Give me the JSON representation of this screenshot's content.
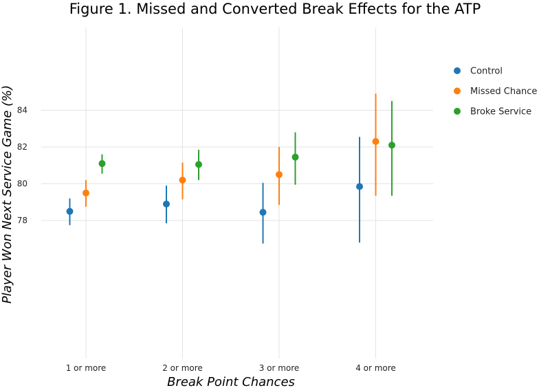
{
  "chart_data": {
    "type": "scatter",
    "title": "Figure 1. Missed and Converted Break Effects for the ATP",
    "xlabel": "Break Point Chances",
    "ylabel": "Player Won Next Service Game (%)",
    "categories": [
      "1 or more",
      "2 or more",
      "3 or more",
      "4 or more"
    ],
    "y_ticks": [
      "78",
      "80",
      "82",
      "84"
    ],
    "y_tick_values": [
      78,
      80,
      82,
      84
    ],
    "ylim": [
      70.5,
      88.5
    ],
    "grid": true,
    "legend_position": "right",
    "series": [
      {
        "name": "Control",
        "color": "#1f77b4",
        "values": [
          78.5,
          78.9,
          78.45,
          79.85
        ],
        "lower": [
          77.75,
          77.85,
          76.75,
          76.8
        ],
        "upper": [
          79.2,
          79.9,
          80.05,
          82.55
        ]
      },
      {
        "name": "Missed Chance",
        "color": "#ff7f0e",
        "values": [
          79.5,
          80.2,
          80.5,
          82.3
        ],
        "lower": [
          78.75,
          79.15,
          78.85,
          79.35
        ],
        "upper": [
          80.2,
          81.15,
          82.0,
          84.9
        ]
      },
      {
        "name": "Broke Service",
        "color": "#2ca02c",
        "values": [
          81.1,
          81.05,
          81.45,
          82.1
        ],
        "lower": [
          80.55,
          80.2,
          79.95,
          79.35
        ],
        "upper": [
          81.6,
          81.85,
          82.8,
          84.5
        ]
      }
    ]
  }
}
